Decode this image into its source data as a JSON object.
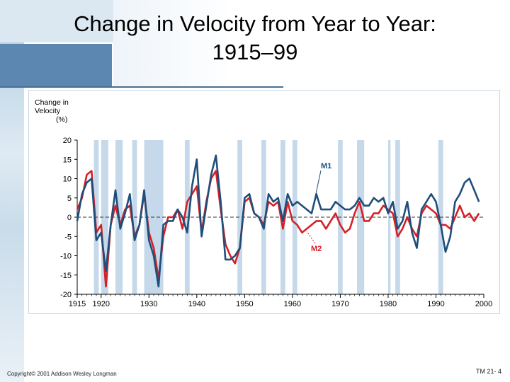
{
  "title_line1": "Change in Velocity from Year to Year:",
  "title_line2": "1915–99",
  "footer_left": "Copyright© 2001 Addison Wesley Longman",
  "footer_right": "TM 21- 4",
  "colors": {
    "m1": "#1f4e7a",
    "m2": "#d62028",
    "recession": "#c5d9ea",
    "axis": "#000000"
  },
  "chart_data": {
    "type": "line",
    "title": "Change in Velocity from Year to Year: 1915–99",
    "ylabel": "Change in Velocity (%)",
    "ylabel_lines": [
      "Change in",
      "Velocity",
      "(%)"
    ],
    "xlabel": "",
    "xlim": [
      1915,
      2000
    ],
    "ylim": [
      -20,
      20
    ],
    "yticks": [
      20,
      15,
      10,
      5,
      0,
      -5,
      -10,
      -15,
      -20
    ],
    "xticks": [
      1915,
      1920,
      1930,
      1940,
      1950,
      1960,
      1970,
      1980,
      1990,
      2000
    ],
    "recession_bands": [
      [
        1918.5,
        1919.5
      ],
      [
        1920,
        1921.5
      ],
      [
        1923,
        1924.5
      ],
      [
        1926.5,
        1927.5
      ],
      [
        1929,
        1933
      ],
      [
        1937.5,
        1938.5
      ],
      [
        1948.5,
        1949.5
      ],
      [
        1953.5,
        1954.5
      ],
      [
        1957.5,
        1958.5
      ],
      [
        1960,
        1961
      ],
      [
        1969.5,
        1970.5
      ],
      [
        1973.5,
        1975
      ],
      [
        1980,
        1980.5
      ],
      [
        1981.5,
        1982.5
      ],
      [
        1990.5,
        1991.5
      ]
    ],
    "series": [
      {
        "name": "M1",
        "label": "M1",
        "x": [
          1915,
          1916,
          1917,
          1918,
          1919,
          1920,
          1921,
          1922,
          1923,
          1924,
          1925,
          1926,
          1927,
          1928,
          1929,
          1930,
          1931,
          1932,
          1933,
          1934,
          1935,
          1936,
          1937,
          1938,
          1939,
          1940,
          1941,
          1942,
          1943,
          1944,
          1945,
          1946,
          1947,
          1948,
          1949,
          1950,
          1951,
          1952,
          1953,
          1954,
          1955,
          1956,
          1957,
          1958,
          1959,
          1960,
          1961,
          1962,
          1963,
          1964,
          1965,
          1966,
          1967,
          1968,
          1969,
          1970,
          1971,
          1972,
          1973,
          1974,
          1975,
          1976,
          1977,
          1978,
          1979,
          1980,
          1981,
          1982,
          1983,
          1984,
          1985,
          1986,
          1987,
          1988,
          1989,
          1990,
          1991,
          1992,
          1993,
          1994,
          1995,
          1996,
          1997,
          1998,
          1999
        ],
        "values": [
          -1,
          6,
          9,
          10,
          -6,
          -4,
          -14,
          -2,
          7,
          -3,
          1,
          6,
          -6,
          -2,
          7,
          -6,
          -10,
          -18,
          -2,
          -1,
          -1,
          2,
          0,
          -4,
          8,
          15,
          -5,
          3,
          11,
          16,
          4,
          -11,
          -11,
          -10,
          -8,
          5,
          6,
          1,
          0,
          -3,
          6,
          4,
          5,
          -1,
          6,
          3,
          4,
          3,
          2,
          1,
          6,
          2,
          2,
          2,
          4,
          3,
          2,
          2,
          3,
          5,
          3,
          3,
          5,
          4,
          5,
          1,
          4,
          -3,
          -1,
          4,
          -4,
          -8,
          2,
          4,
          6,
          4,
          -2,
          -9,
          -5,
          4,
          6,
          9,
          10,
          7,
          4
        ],
        "color": "#1f4e7a"
      },
      {
        "name": "M2",
        "label": "M2",
        "x": [
          1915,
          1916,
          1917,
          1918,
          1919,
          1920,
          1921,
          1922,
          1923,
          1924,
          1925,
          1926,
          1927,
          1928,
          1929,
          1930,
          1931,
          1932,
          1933,
          1934,
          1935,
          1936,
          1937,
          1938,
          1939,
          1940,
          1941,
          1942,
          1943,
          1944,
          1945,
          1946,
          1947,
          1948,
          1949,
          1950,
          1951,
          1952,
          1953,
          1954,
          1955,
          1956,
          1957,
          1958,
          1959,
          1960,
          1961,
          1962,
          1963,
          1964,
          1965,
          1966,
          1967,
          1968,
          1969,
          1970,
          1971,
          1972,
          1973,
          1974,
          1975,
          1976,
          1977,
          1978,
          1979,
          1980,
          1981,
          1982,
          1983,
          1984,
          1985,
          1986,
          1987,
          1988,
          1989,
          1990,
          1991,
          1992,
          1993,
          1994,
          1995,
          1996,
          1997,
          1998,
          1999
        ],
        "values": [
          2,
          5,
          11,
          12,
          -4,
          -2,
          -18,
          -2,
          3,
          -2,
          2,
          3,
          -5,
          -2,
          6,
          -4,
          -8,
          -16,
          -5,
          0,
          0,
          2,
          -3,
          4,
          6,
          8,
          -4,
          4,
          10,
          12,
          2,
          -7,
          -10,
          -12,
          -8,
          4,
          5,
          1,
          0,
          -2,
          4,
          3,
          4,
          -3,
          4,
          -1,
          -2,
          -4,
          -3,
          -2,
          -1,
          -1,
          -3,
          -1,
          1,
          -2,
          -4,
          -3,
          1,
          4,
          -1,
          -1,
          1,
          1,
          3,
          2,
          1,
          -5,
          -3,
          0,
          -3,
          -5,
          1,
          3,
          2,
          1,
          -2,
          -2,
          -3,
          0,
          3,
          0,
          1,
          -1,
          1
        ],
        "color": "#d62028"
      }
    ]
  }
}
